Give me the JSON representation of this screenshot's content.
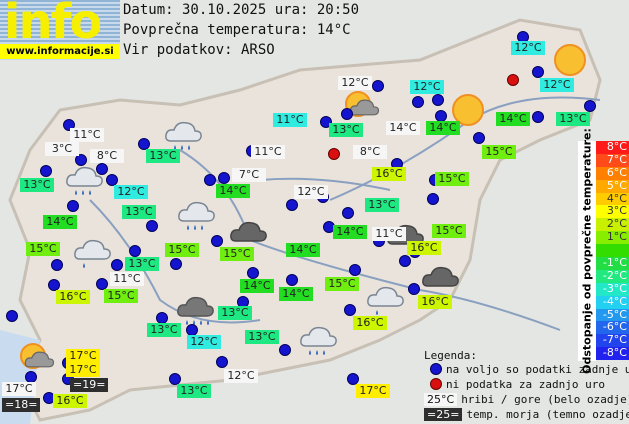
{
  "logo": {
    "text": "info",
    "url": "www.informacije.si"
  },
  "header": {
    "date": "Datum: 30.10.2025 ura: 20:50",
    "avg_temp": "Povprečna temperatura: 14°C",
    "source": "Vir podatkov: ARSO"
  },
  "colors": {
    "mountain": "#f6f6f6",
    "sea": "#2e2e2e",
    "t11": "#30ece0",
    "t12": "#30ece0",
    "t13": "#1ee882",
    "t14": "#22dd22",
    "t15": "#6fee10",
    "t16": "#ccf500",
    "t17": "#ffee00",
    "station": "#1515d0",
    "no_data": "#d81010"
  },
  "stations": [
    {
      "t": "11°C",
      "k": "mountain"
    },
    {
      "t": "3°C",
      "k": "mountain"
    },
    {
      "t": "8°C",
      "k": "mountain"
    },
    {
      "t": "13°C",
      "k": "t13"
    },
    {
      "t": "13°C",
      "k": "t13"
    },
    {
      "t": "12°C",
      "k": "t12"
    },
    {
      "t": "13°C",
      "k": "t13"
    },
    {
      "t": "14°C",
      "k": "t14"
    },
    {
      "t": "11°C",
      "k": "t11"
    },
    {
      "t": "11°C",
      "k": "mountain"
    },
    {
      "t": "7°C",
      "k": "mountain"
    },
    {
      "t": "14°C",
      "k": "t14"
    },
    {
      "t": "12°C",
      "k": "mountain"
    },
    {
      "t": "12°C",
      "k": "mountain"
    },
    {
      "t": "13°C",
      "k": "t13"
    },
    {
      "t": "14°C",
      "k": "mountain"
    },
    {
      "t": "12°C",
      "k": "t12"
    },
    {
      "t": "14°C",
      "k": "t14"
    },
    {
      "t": "12°C",
      "k": "t12"
    },
    {
      "t": "12°C",
      "k": "t12"
    },
    {
      "t": "14°C",
      "k": "t14"
    },
    {
      "t": "13°C",
      "k": "t13"
    },
    {
      "t": "15°C",
      "k": "t15"
    },
    {
      "t": "8°C",
      "k": "mountain"
    },
    {
      "t": "16°C",
      "k": "t16"
    },
    {
      "t": "15°C",
      "k": "t15"
    },
    {
      "t": "13°C",
      "k": "t13"
    },
    {
      "t": "14°C",
      "k": "t14"
    },
    {
      "t": "11°C",
      "k": "mountain"
    },
    {
      "t": "15°C",
      "k": "t15"
    },
    {
      "t": "16°C",
      "k": "t16"
    },
    {
      "t": "14°C",
      "k": "t14"
    },
    {
      "t": "15°C",
      "k": "t15"
    },
    {
      "t": "13°C",
      "k": "t13"
    },
    {
      "t": "15°C",
      "k": "t15"
    },
    {
      "t": "15°C",
      "k": "t15"
    },
    {
      "t": "11°C",
      "k": "mountain"
    },
    {
      "t": "16°C",
      "k": "t16"
    },
    {
      "t": "15°C",
      "k": "t15"
    },
    {
      "t": "14°C",
      "k": "t14"
    },
    {
      "t": "14°C",
      "k": "t14"
    },
    {
      "t": "15°C",
      "k": "t15"
    },
    {
      "t": "16°C",
      "k": "t16"
    },
    {
      "t": "13°C",
      "k": "t13"
    },
    {
      "t": "12°C",
      "k": "t12"
    },
    {
      "t": "13°C",
      "k": "t13"
    },
    {
      "t": "13°C",
      "k": "t13"
    },
    {
      "t": "16°C",
      "k": "t16"
    },
    {
      "t": "17°C",
      "k": "t17"
    },
    {
      "t": "17°C",
      "k": "t17"
    },
    {
      "t": "=19=",
      "k": "sea"
    },
    {
      "t": "17°C",
      "k": "mountain"
    },
    {
      "t": "=18=",
      "k": "sea"
    },
    {
      "t": "16°C",
      "k": "t16"
    },
    {
      "t": "13°C",
      "k": "t13"
    },
    {
      "t": "12°C",
      "k": "mountain"
    },
    {
      "t": "17°C",
      "k": "t17"
    }
  ],
  "weather_icons": [
    "cloud-rain",
    "cloud-rain",
    "cloud-rain",
    "cloud-rain-light",
    "cloud-rain-heavy",
    "sun-cloud",
    "sun",
    "sun",
    "dark-cloud",
    "dark-cloud",
    "dark-cloud",
    "cloud-rain-light",
    "cloud-rain",
    "sun-cloud"
  ],
  "scale": {
    "title": "Odstopanje od povprečne temperature:",
    "steps": [
      {
        "label": "8°C",
        "color": "#ff1a1a"
      },
      {
        "label": "7°C",
        "color": "#ff4a1a"
      },
      {
        "label": "6°C",
        "color": "#ff8000"
      },
      {
        "label": "5°C",
        "color": "#ffa800"
      },
      {
        "label": "4°C",
        "color": "#ffcc00"
      },
      {
        "label": "3°C",
        "color": "#ffff00"
      },
      {
        "label": "2°C",
        "color": "#c8f000"
      },
      {
        "label": "1°C",
        "color": "#88ee00"
      },
      {
        "label": "",
        "color": "#33dd00"
      },
      {
        "label": "-1°C",
        "color": "#22dd44"
      },
      {
        "label": "-2°C",
        "color": "#22e880"
      },
      {
        "label": "-3°C",
        "color": "#22e8c8"
      },
      {
        "label": "-4°C",
        "color": "#22d0f0"
      },
      {
        "label": "-5°C",
        "color": "#2299ee"
      },
      {
        "label": "-6°C",
        "color": "#2266ee"
      },
      {
        "label": "-7°C",
        "color": "#2244ee"
      },
      {
        "label": "-8°C",
        "color": "#2222ee"
      }
    ]
  },
  "legend": {
    "title": "Legenda:",
    "available": "na voljo so podatki zadnje ure",
    "no_data": "ni podatka za zadnjo uro",
    "mountain_sample": "25°C",
    "mountain": "hribi / gore (belo ozadje)",
    "sea_sample": "=25=",
    "sea": "temp. morja (temno ozadje)"
  }
}
